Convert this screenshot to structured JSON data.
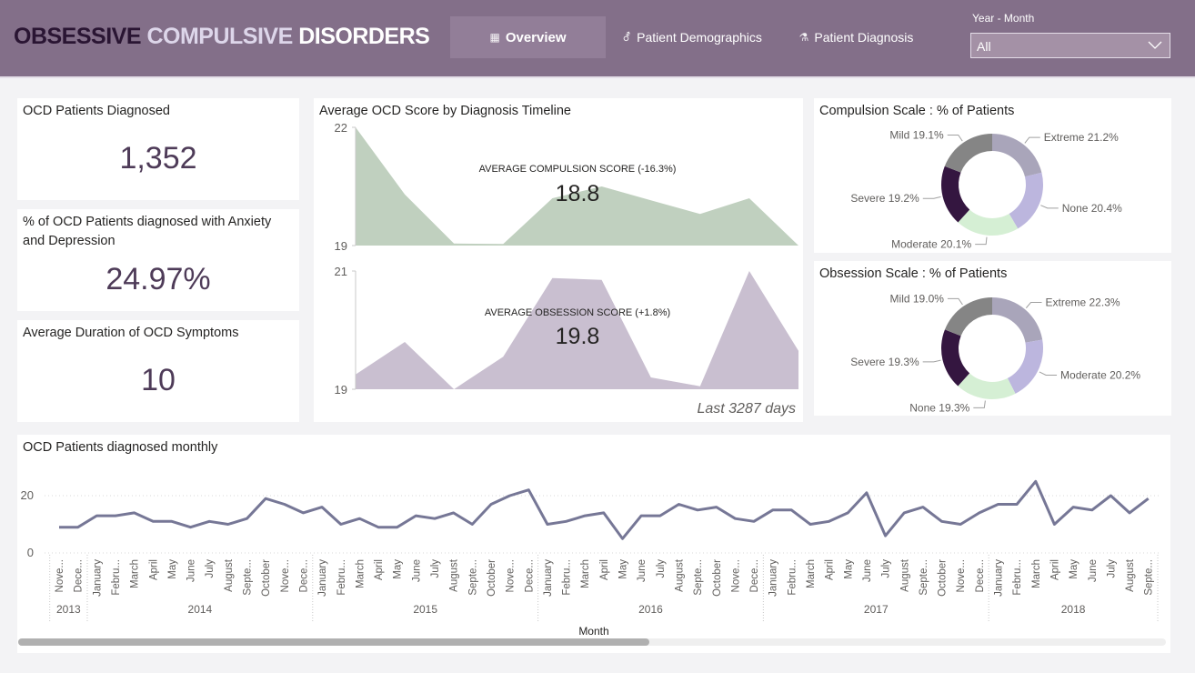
{
  "header": {
    "title_word1": "OBSESSIVE",
    "title_word2": "COMPULSIVE",
    "title_word3": "DISORDERS",
    "nav": [
      {
        "label": "Overview",
        "icon": "report-icon",
        "glyph": "▦",
        "active": true
      },
      {
        "label": "Patient Demographics",
        "icon": "gender-icon",
        "glyph": "⚦",
        "active": false
      },
      {
        "label": "Patient Diagnosis",
        "icon": "test-tube-icon",
        "glyph": "⚗",
        "active": false
      }
    ],
    "filter": {
      "label": "Year - Month",
      "value": "All"
    }
  },
  "colors": {
    "header_bg": "#836f89",
    "kpi_value": "#4e3b58",
    "compulsion_area": "#c0d0bf",
    "obsession_area": "#c9bfd0",
    "line": "#767796"
  },
  "kpis": [
    {
      "title": "OCD Patients Diagnosed",
      "value": "1,352"
    },
    {
      "title": "% of OCD Patients diagnosed with Anxiety and Depression",
      "value": "24.97%"
    },
    {
      "title": "Average Duration of OCD Symptoms",
      "value": "10"
    }
  ],
  "timeline": {
    "title": "Average OCD Score by Diagnosis Timeline",
    "footer": "Last 3287 days"
  },
  "chart_data": [
    {
      "id": "compulsion-timeline",
      "type": "area",
      "title": "AVERAGE COMPULSION SCORE (-16.3%)",
      "headline_value": "18.8",
      "ylim": [
        19,
        22
      ],
      "yticks": [
        "22",
        "19"
      ],
      "values": [
        22.0,
        20.3,
        19.05,
        19.04,
        20.2,
        20.5,
        20.15,
        19.8,
        20.2,
        19.0
      ]
    },
    {
      "id": "obsession-timeline",
      "type": "area",
      "title": "AVERAGE OBSESSION SCORE (+1.8%)",
      "headline_value": "19.8",
      "ylim": [
        19,
        21
      ],
      "yticks": [
        "21",
        "19"
      ],
      "values": [
        19.25,
        19.8,
        19.0,
        19.55,
        20.88,
        20.85,
        19.2,
        19.05,
        21.0,
        19.65
      ]
    },
    {
      "id": "compulsion-scale",
      "type": "pie",
      "title": "Compulsion Scale : % of Patients",
      "slices": [
        {
          "label": "Extreme",
          "value": 21.2,
          "display": "Extreme 21.2%",
          "color": "#a9a5ba"
        },
        {
          "label": "None",
          "value": 20.4,
          "display": "None 20.4%",
          "color": "#bcb6de"
        },
        {
          "label": "Moderate",
          "value": 20.1,
          "display": "Moderate 20.1%",
          "color": "#d5efd4"
        },
        {
          "label": "Severe",
          "value": 19.2,
          "display": "Severe 19.2%",
          "color": "#341640"
        },
        {
          "label": "Mild",
          "value": 19.1,
          "display": "Mild 19.1%",
          "color": "#858585"
        }
      ]
    },
    {
      "id": "obsession-scale",
      "type": "pie",
      "title": "Obsession Scale : % of Patients",
      "slices": [
        {
          "label": "Extreme",
          "value": 22.3,
          "display": "Extreme 22.3%",
          "color": "#a9a5ba"
        },
        {
          "label": "Moderate",
          "value": 20.2,
          "display": "Moderate 20.2%",
          "color": "#bcb6de"
        },
        {
          "label": "None",
          "value": 19.3,
          "display": "None 19.3%",
          "color": "#d5efd4"
        },
        {
          "label": "Severe",
          "value": 19.3,
          "display": "Severe 19.3%",
          "color": "#341640"
        },
        {
          "label": "Mild",
          "value": 19.0,
          "display": "Mild 19.0%",
          "color": "#858585"
        }
      ]
    },
    {
      "id": "monthly-diagnosed",
      "type": "line",
      "title": "OCD Patients diagnosed monthly",
      "xlabel": "Month",
      "ylabel": "",
      "ylim": [
        0,
        26
      ],
      "yticks": [
        0,
        20
      ],
      "grid": true,
      "x": [
        "Nove...",
        "Dece...",
        "January",
        "Febru...",
        "March",
        "April",
        "May",
        "June",
        "July",
        "August",
        "Septe...",
        "October",
        "Nove...",
        "Dece...",
        "January",
        "Febru...",
        "March",
        "April",
        "May",
        "June",
        "July",
        "August",
        "Septe...",
        "October",
        "Nove...",
        "Dece...",
        "January",
        "Febru...",
        "March",
        "April",
        "May",
        "June",
        "July",
        "August",
        "Septe...",
        "October",
        "Nove...",
        "Dece...",
        "January",
        "Febru...",
        "March",
        "April",
        "May",
        "June",
        "July",
        "August",
        "Septe...",
        "October",
        "Nove...",
        "Dece...",
        "January",
        "Febru...",
        "March",
        "April",
        "May",
        "June",
        "July",
        "August",
        "Septe..."
      ],
      "years": [
        {
          "label": "2013",
          "count": 2
        },
        {
          "label": "2014",
          "count": 12
        },
        {
          "label": "2015",
          "count": 12
        },
        {
          "label": "2016",
          "count": 12
        },
        {
          "label": "2017",
          "count": 12
        },
        {
          "label": "2018",
          "count": 9
        }
      ],
      "values": [
        9,
        9,
        13,
        13,
        14,
        11,
        11,
        9,
        11,
        10,
        12,
        19,
        17,
        14,
        16,
        10,
        12,
        9,
        9,
        13,
        12,
        14,
        10,
        17,
        20,
        22,
        10,
        11,
        13,
        14,
        5,
        13,
        13,
        17,
        15,
        16,
        12,
        11,
        15,
        15,
        10,
        11,
        14,
        21,
        6,
        14,
        16,
        11,
        10,
        14,
        17,
        17,
        25,
        10,
        16,
        15,
        20,
        14,
        19
      ]
    }
  ]
}
